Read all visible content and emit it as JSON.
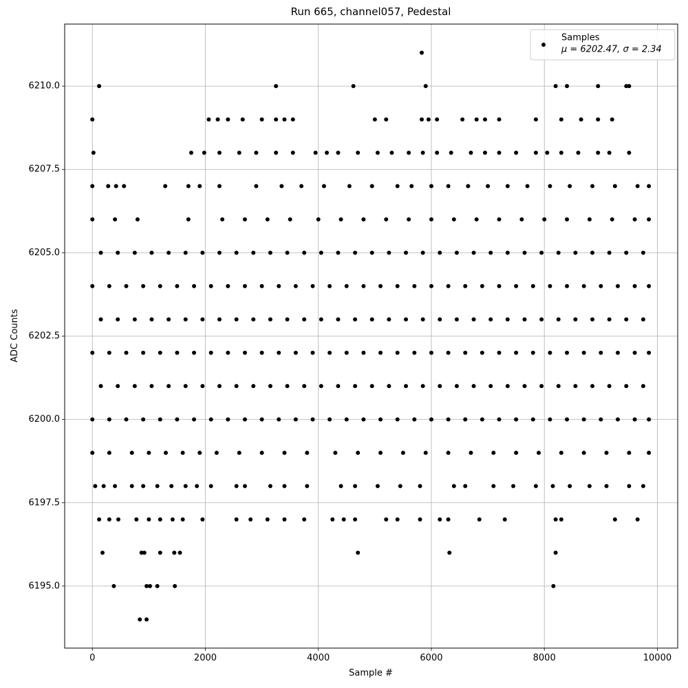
{
  "chart_data": {
    "type": "scatter",
    "title": "Run 665, channel057, Pedestal",
    "xlabel": "Sample #",
    "ylabel": "ADC Counts",
    "xlim": [
      -490,
      10360
    ],
    "ylim": [
      6193.14,
      6211.86
    ],
    "xticks": [
      0,
      2000,
      4000,
      6000,
      8000,
      10000
    ],
    "yticks": [
      {
        "value": 6195,
        "label": "6195.0"
      },
      {
        "value": 6197.5,
        "label": "6197.5"
      },
      {
        "value": 6200,
        "label": "6200.0"
      },
      {
        "value": 6202.5,
        "label": "6202.5"
      },
      {
        "value": 6205,
        "label": "6205.0"
      },
      {
        "value": 6207.5,
        "label": "6207.5"
      },
      {
        "value": 6210,
        "label": "6210.0"
      }
    ],
    "grid": true,
    "legend": "upper right",
    "legend_note": "μ = 6202.47, σ = 2.34",
    "series": [
      {
        "name": "Samples",
        "color": "#000000",
        "x": [
          0,
          300,
          600,
          900,
          1200,
          1500,
          1800,
          2100,
          2400,
          2700,
          3000,
          3300,
          3600,
          3900,
          4200,
          4500,
          4800,
          5100,
          5400,
          5700,
          6000,
          6300,
          6600,
          6900,
          7200,
          7500,
          7800,
          8100,
          8400,
          8700,
          9000,
          9300,
          9600,
          9850,
          150,
          450,
          750,
          1050,
          1350,
          1650,
          1950,
          2250,
          2550,
          2850,
          3150,
          3450,
          3750,
          4050,
          4350,
          4650,
          4950,
          5250,
          5550,
          5850,
          6150,
          6450,
          6750,
          7050,
          7350,
          7650,
          7950,
          8250,
          8550,
          8850,
          9150,
          9450,
          9750,
          0,
          300,
          600,
          900,
          1200,
          1500,
          1800,
          2100,
          2400,
          2700,
          3000,
          3300,
          3600,
          3900,
          4200,
          4500,
          4800,
          5100,
          5400,
          5700,
          6000,
          6300,
          6600,
          6900,
          7200,
          7500,
          7800,
          8100,
          8400,
          8700,
          9000,
          9300,
          9600,
          9850,
          150,
          450,
          750,
          1050,
          1350,
          1650,
          1950,
          2250,
          2550,
          2850,
          3150,
          3450,
          3750,
          4050,
          4350,
          4650,
          4950,
          5250,
          5550,
          5850,
          6150,
          6450,
          6750,
          7050,
          7350,
          7650,
          7950,
          8250,
          8550,
          8850,
          9150,
          9450,
          9750,
          0,
          300,
          600,
          900,
          1200,
          1500,
          1800,
          2100,
          2400,
          2700,
          3000,
          3300,
          3600,
          3900,
          4200,
          4500,
          4800,
          5100,
          5400,
          5700,
          6000,
          6300,
          6600,
          6900,
          7200,
          7500,
          7800,
          8100,
          8400,
          8700,
          9000,
          9300,
          9600,
          9850,
          150,
          450,
          750,
          1050,
          1350,
          1650,
          1950,
          2250,
          2550,
          2850,
          3150,
          3450,
          3750,
          4050,
          4350,
          4650,
          4950,
          5250,
          5550,
          5850,
          6150,
          6450,
          6750,
          7050,
          7350,
          7650,
          7950,
          8250,
          8550,
          8850,
          9150,
          9450,
          9750,
          0,
          400,
          800,
          1700,
          2300,
          2700,
          3100,
          3500,
          4000,
          4400,
          4800,
          5200,
          5600,
          6000,
          6400,
          6800,
          7200,
          7600,
          8000,
          8400,
          8800,
          9200,
          9600,
          9850,
          0,
          300,
          700,
          1000,
          1300,
          1600,
          1900,
          2200,
          2600,
          3000,
          3400,
          3800,
          4300,
          4700,
          5100,
          5500,
          5900,
          6300,
          6700,
          7100,
          7500,
          7900,
          8300,
          8700,
          9100,
          9500,
          9850,
          0,
          280,
          420,
          560,
          1290,
          1700,
          1900,
          2250,
          2900,
          3350,
          3700,
          4100,
          4550,
          4950,
          5400,
          5650,
          6000,
          6300,
          6650,
          7000,
          7350,
          7700,
          8100,
          8450,
          8850,
          9250,
          9650,
          9850,
          50,
          200,
          400,
          700,
          900,
          1150,
          1400,
          1650,
          1850,
          2100,
          2550,
          2700,
          3150,
          3400,
          3800,
          4400,
          4650,
          5050,
          5450,
          5800,
          6400,
          6600,
          7100,
          7450,
          7850,
          8150,
          8450,
          8800,
          9100,
          9500,
          9750,
          20,
          1750,
          1980,
          2250,
          2600,
          2900,
          3250,
          3550,
          3950,
          4150,
          4350,
          4700,
          5050,
          5300,
          5600,
          5850,
          6100,
          6350,
          6700,
          6950,
          7200,
          7500,
          7850,
          8050,
          8300,
          8600,
          8950,
          9150,
          9500,
          0,
          2060,
          2220,
          2400,
          2660,
          3000,
          3250,
          3400,
          3550,
          5000,
          5200,
          5830,
          5950,
          6100,
          6550,
          6800,
          6950,
          7200,
          7850,
          8300,
          8650,
          8950,
          9200,
          120,
          300,
          460,
          780,
          1000,
          1200,
          1420,
          1600,
          1950,
          2550,
          2800,
          3100,
          3400,
          3750,
          4250,
          4450,
          4650,
          5200,
          5400,
          5800,
          6150,
          6300,
          6850,
          7300,
          8200,
          8300,
          9250,
          9650,
          180,
          870,
          920,
          1200,
          1450,
          1550,
          4700,
          6320,
          8200,
          380,
          960,
          1020,
          1150,
          1460,
          8160,
          120,
          3250,
          4620,
          5900,
          8200,
          8400,
          8950,
          9450,
          9500,
          5830,
          840,
          960
        ],
        "values": [
          6200,
          6200,
          6200,
          6200,
          6200,
          6200,
          6200,
          6200,
          6200,
          6200,
          6200,
          6200,
          6200,
          6200,
          6200,
          6200,
          6200,
          6200,
          6200,
          6200,
          6200,
          6200,
          6200,
          6200,
          6200,
          6200,
          6200,
          6200,
          6200,
          6200,
          6200,
          6200,
          6200,
          6200,
          6201,
          6201,
          6201,
          6201,
          6201,
          6201,
          6201,
          6201,
          6201,
          6201,
          6201,
          6201,
          6201,
          6201,
          6201,
          6201,
          6201,
          6201,
          6201,
          6201,
          6201,
          6201,
          6201,
          6201,
          6201,
          6201,
          6201,
          6201,
          6201,
          6201,
          6201,
          6201,
          6201,
          6202,
          6202,
          6202,
          6202,
          6202,
          6202,
          6202,
          6202,
          6202,
          6202,
          6202,
          6202,
          6202,
          6202,
          6202,
          6202,
          6202,
          6202,
          6202,
          6202,
          6202,
          6202,
          6202,
          6202,
          6202,
          6202,
          6202,
          6202,
          6202,
          6202,
          6202,
          6202,
          6202,
          6202,
          6203,
          6203,
          6203,
          6203,
          6203,
          6203,
          6203,
          6203,
          6203,
          6203,
          6203,
          6203,
          6203,
          6203,
          6203,
          6203,
          6203,
          6203,
          6203,
          6203,
          6203,
          6203,
          6203,
          6203,
          6203,
          6203,
          6203,
          6203,
          6203,
          6203,
          6203,
          6203,
          6203,
          6204,
          6204,
          6204,
          6204,
          6204,
          6204,
          6204,
          6204,
          6204,
          6204,
          6204,
          6204,
          6204,
          6204,
          6204,
          6204,
          6204,
          6204,
          6204,
          6204,
          6204,
          6204,
          6204,
          6204,
          6204,
          6204,
          6204,
          6204,
          6204,
          6204,
          6204,
          6204,
          6204,
          6204,
          6205,
          6205,
          6205,
          6205,
          6205,
          6205,
          6205,
          6205,
          6205,
          6205,
          6205,
          6205,
          6205,
          6205,
          6205,
          6205,
          6205,
          6205,
          6205,
          6205,
          6205,
          6205,
          6205,
          6205,
          6205,
          6205,
          6205,
          6205,
          6205,
          6205,
          6205,
          6205,
          6205,
          6206,
          6206,
          6206,
          6206,
          6206,
          6206,
          6206,
          6206,
          6206,
          6206,
          6206,
          6206,
          6206,
          6206,
          6206,
          6206,
          6206,
          6206,
          6206,
          6206,
          6206,
          6206,
          6206,
          6206,
          6199,
          6199,
          6199,
          6199,
          6199,
          6199,
          6199,
          6199,
          6199,
          6199,
          6199,
          6199,
          6199,
          6199,
          6199,
          6199,
          6199,
          6199,
          6199,
          6199,
          6199,
          6199,
          6199,
          6199,
          6199,
          6199,
          6199,
          6207,
          6207,
          6207,
          6207,
          6207,
          6207,
          6207,
          6207,
          6207,
          6207,
          6207,
          6207,
          6207,
          6207,
          6207,
          6207,
          6207,
          6207,
          6207,
          6207,
          6207,
          6207,
          6207,
          6207,
          6207,
          6207,
          6207,
          6207,
          6198,
          6198,
          6198,
          6198,
          6198,
          6198,
          6198,
          6198,
          6198,
          6198,
          6198,
          6198,
          6198,
          6198,
          6198,
          6198,
          6198,
          6198,
          6198,
          6198,
          6198,
          6198,
          6198,
          6198,
          6198,
          6198,
          6198,
          6198,
          6198,
          6198,
          6198,
          6208,
          6208,
          6208,
          6208,
          6208,
          6208,
          6208,
          6208,
          6208,
          6208,
          6208,
          6208,
          6208,
          6208,
          6208,
          6208,
          6208,
          6208,
          6208,
          6208,
          6208,
          6208,
          6208,
          6208,
          6208,
          6208,
          6208,
          6208,
          6208,
          6209,
          6209,
          6209,
          6209,
          6209,
          6209,
          6209,
          6209,
          6209,
          6209,
          6209,
          6209,
          6209,
          6209,
          6209,
          6209,
          6209,
          6209,
          6209,
          6209,
          6209,
          6209,
          6209,
          6197,
          6197,
          6197,
          6197,
          6197,
          6197,
          6197,
          6197,
          6197,
          6197,
          6197,
          6197,
          6197,
          6197,
          6197,
          6197,
          6197,
          6197,
          6197,
          6197,
          6197,
          6197,
          6197,
          6197,
          6197,
          6197,
          6197,
          6197,
          6196,
          6196,
          6196,
          6196,
          6196,
          6196,
          6196,
          6196,
          6196,
          6195,
          6195,
          6195,
          6195,
          6195,
          6195,
          6210,
          6210,
          6210,
          6210,
          6210,
          6210,
          6210,
          6210,
          6210,
          6211,
          6194,
          6194
        ]
      }
    ]
  }
}
